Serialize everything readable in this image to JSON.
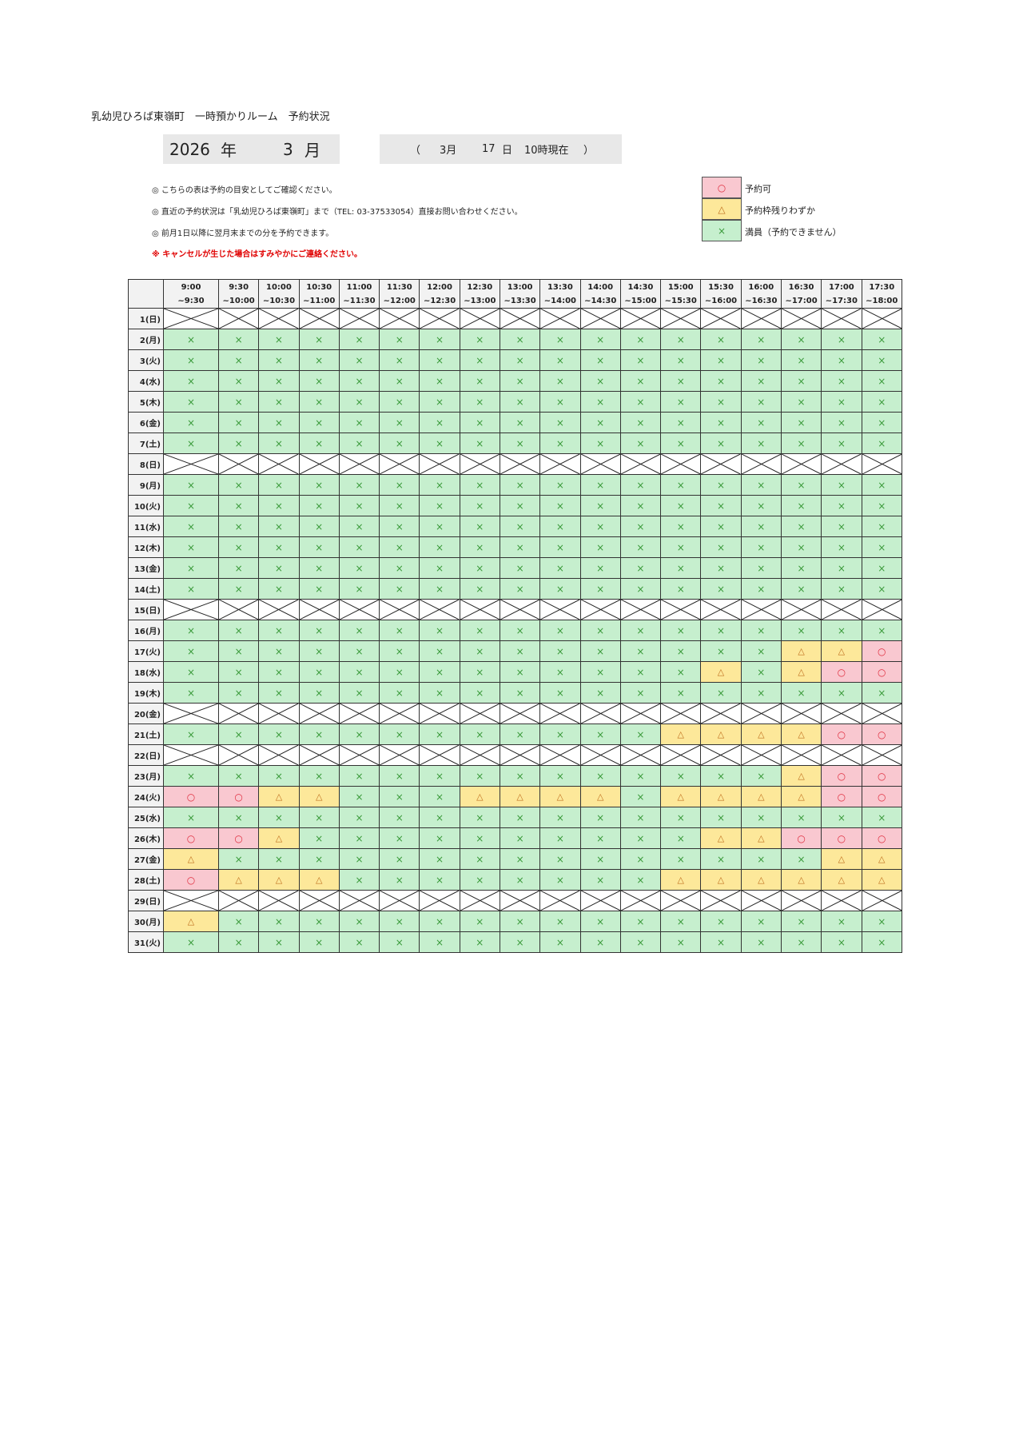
{
  "title": "乳幼児ひろば東嶺町　一時預かりルーム　予約状況",
  "period": {
    "year": "2026",
    "year_unit": "年",
    "month": "3",
    "month_unit": "月"
  },
  "as_of": {
    "open": "（",
    "month": "3月",
    "day": "17",
    "day_unit": "日",
    "time": "10時現在",
    "close": "）"
  },
  "notes": [
    "◎  こちらの表は予約の目安としてご確認ください。",
    "◎  直近の予約状況は「乳幼児ひろば東嶺町」まで（TEL: 03-37533054）直接お問い合わせください。",
    "◎  前月1日以降に翌月末までの分を予約できます。"
  ],
  "warning": "※  キャンセルが生じた場合はすみやかにご連絡ください。",
  "legend": [
    {
      "symbol": "○",
      "label": "予約可",
      "color": "#f9c8d0"
    },
    {
      "symbol": "△",
      "label": "予約枠残りわずか",
      "color": "#fde89a"
    },
    {
      "symbol": "×",
      "label": "満員（予約できません）",
      "color": "#c6efce"
    }
  ],
  "time_slots": [
    [
      "9:00",
      "~9:30"
    ],
    [
      "9:30",
      "~10:00"
    ],
    [
      "10:00",
      "~10:30"
    ],
    [
      "10:30",
      "~11:00"
    ],
    [
      "11:00",
      "~11:30"
    ],
    [
      "11:30",
      "~12:00"
    ],
    [
      "12:00",
      "~12:30"
    ],
    [
      "12:30",
      "~13:00"
    ],
    [
      "13:00",
      "~13:30"
    ],
    [
      "13:30",
      "~14:00"
    ],
    [
      "14:00",
      "~14:30"
    ],
    [
      "14:30",
      "~15:00"
    ],
    [
      "15:00",
      "~15:30"
    ],
    [
      "15:30",
      "~16:00"
    ],
    [
      "16:00",
      "~16:30"
    ],
    [
      "16:30",
      "~17:00"
    ],
    [
      "17:00",
      "~17:30"
    ],
    [
      "17:30",
      "~18:00"
    ]
  ],
  "days": [
    {
      "label": "1(日)",
      "closed": true
    },
    {
      "label": "2(月)",
      "cells": "××××××××××××××××××"
    },
    {
      "label": "3(火)",
      "cells": "××××××××××××××××××"
    },
    {
      "label": "4(水)",
      "cells": "××××××××××××××××××"
    },
    {
      "label": "5(木)",
      "cells": "××××××××××××××××××"
    },
    {
      "label": "6(金)",
      "cells": "××××××××××××××××××"
    },
    {
      "label": "7(土)",
      "cells": "××××××××××××××××××"
    },
    {
      "label": "8(日)",
      "closed": true
    },
    {
      "label": "9(月)",
      "cells": "××××××××××××××××××"
    },
    {
      "label": "10(火)",
      "cells": "××××××××××××××××××"
    },
    {
      "label": "11(水)",
      "cells": "××××××××××××××××××"
    },
    {
      "label": "12(木)",
      "cells": "××××××××××××××××××"
    },
    {
      "label": "13(金)",
      "cells": "××××××××××××××××××"
    },
    {
      "label": "14(土)",
      "cells": "××××××××××××××××××"
    },
    {
      "label": "15(日)",
      "closed": true
    },
    {
      "label": "16(月)",
      "cells": "××××××××××××××××××"
    },
    {
      "label": "17(火)",
      "cells": "×××××××××××××××△△○"
    },
    {
      "label": "18(水)",
      "cells": "×××××××××××××△×△○○"
    },
    {
      "label": "19(木)",
      "cells": "××××××××××××××××××"
    },
    {
      "label": "20(金)",
      "closed": true
    },
    {
      "label": "21(土)",
      "cells": "××××××××××××△△△△○○"
    },
    {
      "label": "22(日)",
      "closed": true
    },
    {
      "label": "23(月)",
      "cells": "×××××××××××××××△○○"
    },
    {
      "label": "24(火)",
      "cells": "○○△△×××△△△△×△△△△○○"
    },
    {
      "label": "25(水)",
      "cells": "××××××××××××××××××"
    },
    {
      "label": "26(木)",
      "cells": "○○△××××××××××△△○○○"
    },
    {
      "label": "27(金)",
      "cells": "△×××××××××××××××△△"
    },
    {
      "label": "28(土)",
      "cells": "○△△△××××××××△△△△△△"
    },
    {
      "label": "29(日)",
      "closed": true
    },
    {
      "label": "30(月)",
      "cells": "△×××××××××××××××××"
    },
    {
      "label": "31(火)",
      "cells": "××××××××××××××××××"
    }
  ]
}
